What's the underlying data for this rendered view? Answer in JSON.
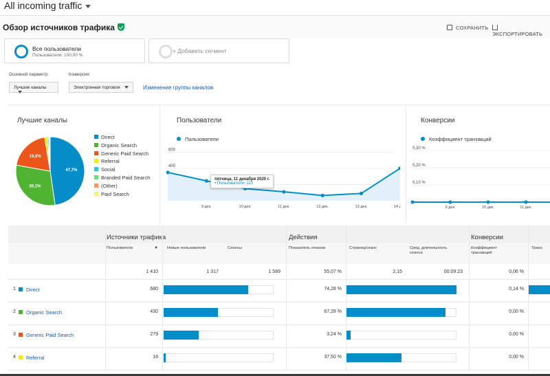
{
  "view": {
    "title": "All incoming traffic"
  },
  "report": {
    "title": "Обзор источников трафика",
    "save_label": "СОХРАНИТЬ",
    "export_label": "ЭКСПОРТИРОВАТЬ"
  },
  "segments": {
    "active": {
      "name": "Все пользователи",
      "sub": "Пользователи: 100,00 %"
    },
    "add_label": "+ Добавить сегмент"
  },
  "controls": {
    "primary_label": "Основной параметр:",
    "primary_value": "Лучшие каналы",
    "conversion_label": "Конверсия:",
    "conversion_value": "Электронная торговля",
    "channel_group_link": "Изменение группы каналов"
  },
  "colors": {
    "accent": "#058dc7",
    "link": "#1a5aa6"
  },
  "pie_panel": {
    "title": "Лучшие каналы",
    "legend": [
      {
        "label": "Direct",
        "color": "#058dc7"
      },
      {
        "label": "Organic Search",
        "color": "#50b432"
      },
      {
        "label": "Generic Paid Search",
        "color": "#ed561b"
      },
      {
        "label": "Referral",
        "color": "#edef00"
      },
      {
        "label": "Social",
        "color": "#24cbe5"
      },
      {
        "label": "Branded Paid Search",
        "color": "#64e572"
      },
      {
        "label": "(Other)",
        "color": "#ff9655"
      },
      {
        "label": "Paid Search",
        "color": "#fff263"
      }
    ],
    "slice_labels": [
      "47,7%",
      "30,1%",
      "19,6%"
    ]
  },
  "users_panel": {
    "title": "Пользователи",
    "series_label": "Пользователи",
    "y_ticks": [
      "600",
      "400",
      "200"
    ],
    "x_ticks": [
      "9 дек.",
      "10 дек.",
      "11 дек.",
      "12 дек.",
      "13 дек.",
      "14 дек."
    ],
    "tooltip": {
      "date": "пятница, 11 декабря 2020 г.",
      "value": "• Пользователи: 110"
    }
  },
  "conv_panel": {
    "title": "Конверсии",
    "series_label": "Коэффициент транзакций",
    "y_ticks": [
      "0,30 %",
      "0,20 %",
      "0,10 %"
    ],
    "x_ticks": [
      "9 дек.",
      "10 дек.",
      "11 дек."
    ]
  },
  "chart_data": [
    {
      "type": "pie",
      "title": "Лучшие каналы",
      "categories": [
        "Direct",
        "Organic Search",
        "Generic Paid Search",
        "Referral",
        "Social",
        "Branded Paid Search",
        "(Other)",
        "Paid Search"
      ],
      "values": [
        47.7,
        30.1,
        19.6,
        1.3,
        0.6,
        0.4,
        0.2,
        0.1
      ]
    },
    {
      "type": "area",
      "title": "Пользователи",
      "x": [
        "8 дек.",
        "9 дек.",
        "10 дек.",
        "11 дек.",
        "12 дек.",
        "13 дек.",
        "14 дек."
      ],
      "series": [
        {
          "name": "Пользователи",
          "values": [
            350,
            245,
            150,
            110,
            65,
            90,
            400
          ]
        }
      ],
      "ylim": [
        0,
        620
      ]
    },
    {
      "type": "line",
      "title": "Конверсии",
      "x": [
        "8 дек.",
        "9 дек.",
        "10 дек.",
        "11 дек."
      ],
      "series": [
        {
          "name": "Коэффициент транзакций",
          "values": [
            0,
            0,
            0,
            0
          ]
        }
      ],
      "ylim": [
        0,
        0.3
      ]
    }
  ],
  "table": {
    "groups": [
      "Источники трафика",
      "Действия",
      "Конверсии"
    ],
    "headers": [
      "Пользователи",
      "Новые пользователи",
      "Сеансы",
      "Показатель отказов",
      "Страниц/сеанс",
      "Сред. длительность сеанса",
      "Коэффициент транзакций",
      "Транз"
    ],
    "totals": [
      "1 410",
      "1 317",
      "1 589",
      "55,07 %",
      "2,15",
      "00:09:23",
      "0,06 %"
    ],
    "rows": [
      {
        "n": "1",
        "name": "Direct",
        "color": "#058dc7",
        "users": "680",
        "new_share": 0.48,
        "sessions_share": 0.56,
        "bounce": "74,28 %",
        "pages_share": 1.0,
        "conv": "0,14 %",
        "conv_share": 0.9
      },
      {
        "n": "2",
        "name": "Organic Search",
        "color": "#50b432",
        "users": "430",
        "new_share": 0.31,
        "sessions_share": 0.33,
        "bounce": "67,28 %",
        "pages_share": 0.9,
        "conv": "0,00 %",
        "conv_share": 0
      },
      {
        "n": "3",
        "name": "Generic Paid Search",
        "color": "#ed561b",
        "users": "279",
        "new_share": 0.2,
        "sessions_share": 0.2,
        "bounce": "3,24 %",
        "pages_share": 0.04,
        "conv": "0,00 %",
        "conv_share": 0
      },
      {
        "n": "4",
        "name": "Referral",
        "color": "#edef00",
        "users": "18",
        "new_share": 0.01,
        "sessions_share": 0.01,
        "bounce": "37,50 %",
        "pages_share": 0.5,
        "conv": "0,00 %",
        "conv_share": 0
      }
    ]
  }
}
